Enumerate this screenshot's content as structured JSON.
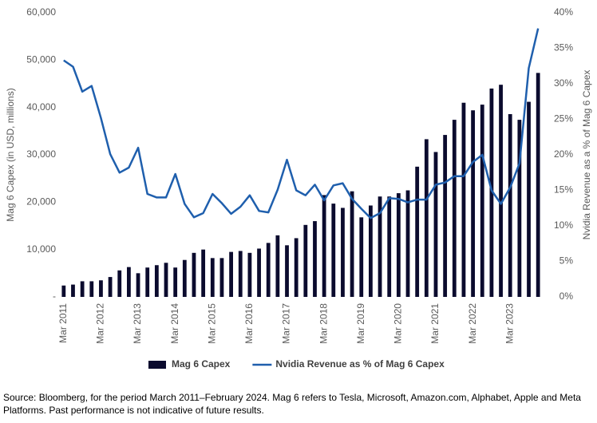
{
  "chart_data": {
    "type": "bar-line",
    "categories": [
      "Mar 2011",
      null,
      null,
      null,
      "Mar 2012",
      null,
      null,
      null,
      "Mar 2013",
      null,
      null,
      null,
      "Mar 2014",
      null,
      null,
      null,
      "Mar 2015",
      null,
      null,
      null,
      "Mar 2016",
      null,
      null,
      null,
      "Mar 2017",
      null,
      null,
      null,
      "Mar 2018",
      null,
      null,
      null,
      "Mar 2019",
      null,
      null,
      null,
      "Mar 2020",
      null,
      null,
      null,
      "Mar 2021",
      null,
      null,
      null,
      "Mar 2022",
      null,
      null,
      null,
      "Mar 2023",
      null,
      null,
      null
    ],
    "series": [
      {
        "name": "Mag 6 Capex",
        "type": "bar",
        "color": "#0b0b2e",
        "values": [
          2400,
          2600,
          3300,
          3300,
          3500,
          4200,
          5600,
          6300,
          5000,
          6200,
          6700,
          7200,
          6200,
          7800,
          9300,
          10000,
          8200,
          8200,
          9500,
          9700,
          9300,
          10200,
          11400,
          13000,
          10900,
          12400,
          15200,
          16000,
          21500,
          19700,
          18800,
          22300,
          16800,
          19300,
          21200,
          21200,
          21900,
          22500,
          27500,
          33300,
          30600,
          34200,
          37400,
          41000,
          39400,
          40600,
          44000,
          44800,
          38600,
          37400,
          41200,
          47300
        ]
      },
      {
        "name": "Nvidia Revenue as % of Mag 6 Capex",
        "type": "line",
        "axis": "y2",
        "color": "#1f5fad",
        "values": [
          33.3,
          32.4,
          28.9,
          29.7,
          25.2,
          20.1,
          17.5,
          18.2,
          21.0,
          14.5,
          14.0,
          14.0,
          17.3,
          13.1,
          11.2,
          11.8,
          14.5,
          13.2,
          11.7,
          12.7,
          14.3,
          12.1,
          11.9,
          15.1,
          19.3,
          15.0,
          14.3,
          15.8,
          13.6,
          15.7,
          16.0,
          13.8,
          12.4,
          11.1,
          11.8,
          13.9,
          13.8,
          13.3,
          13.7,
          13.7,
          15.8,
          16.1,
          17.0,
          17.0,
          19.0,
          20.0,
          15.0,
          13.1,
          15.4,
          18.8,
          32.2,
          37.8
        ]
      }
    ],
    "y_label": "Mag 6 Capex (in USD, millions)",
    "y2_label": "Nvidia Revenue as a % of Mag 6 Capex",
    "ylim": [
      0,
      60000
    ],
    "yticks": [
      {
        "value": 0,
        "label": "-"
      },
      {
        "value": 10000,
        "label": "10,000"
      },
      {
        "value": 20000,
        "label": "20,000"
      },
      {
        "value": 30000,
        "label": "30,000"
      },
      {
        "value": 40000,
        "label": "40,000"
      },
      {
        "value": 50000,
        "label": "50,000"
      },
      {
        "value": 60000,
        "label": "60,000"
      }
    ],
    "y2lim": [
      0,
      40
    ],
    "y2ticks": [
      {
        "value": 0,
        "label": "0%"
      },
      {
        "value": 5,
        "label": "5%"
      },
      {
        "value": 10,
        "label": "10%"
      },
      {
        "value": 15,
        "label": "15%"
      },
      {
        "value": 20,
        "label": "20%"
      },
      {
        "value": 25,
        "label": "25%"
      },
      {
        "value": 30,
        "label": "30%"
      },
      {
        "value": 35,
        "label": "35%"
      },
      {
        "value": 40,
        "label": "40%"
      }
    ],
    "legend": "bottom",
    "source": "Source: Bloomberg, for the period March 2011–February 2024. Mag 6 refers to Tesla, Microsoft, Amazon.com, Alphabet, Apple and Meta Platforms. Past performance is not indicative of future results."
  }
}
